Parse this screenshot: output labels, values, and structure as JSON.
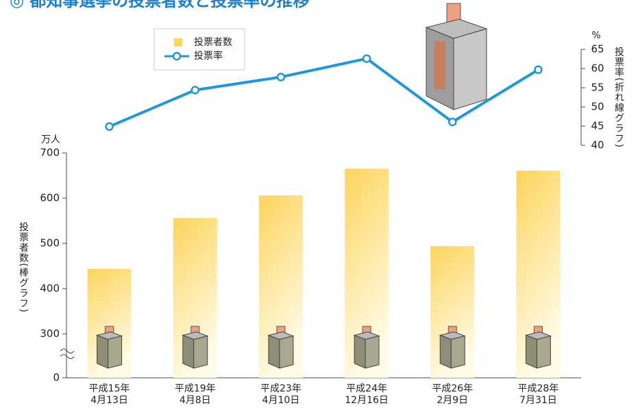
{
  "chart_data": {
    "type": "bar_line",
    "title": "◎ 都知事選挙の投票者数と投票率の推移",
    "categories": [
      [
        "平成15年",
        "4月13日"
      ],
      [
        "平成19年",
        "4月8日"
      ],
      [
        "平成23年",
        "4月10日"
      ],
      [
        "平成24年",
        "12月16日"
      ],
      [
        "平成26年",
        "2月9日"
      ],
      [
        "平成28年",
        "7月31日"
      ]
    ],
    "y_unit": "万人",
    "y_label": "投票者数(棒グラフ)",
    "y2_unit": "%",
    "y2_label": "投票率(折れ線グラフ)",
    "ylim": [
      0,
      700
    ],
    "yticks": [
      0,
      300,
      400,
      500,
      600,
      700
    ],
    "y_axis_break": [
      0,
      300
    ],
    "y2lim": [
      40,
      65
    ],
    "y2ticks": [
      40,
      45,
      50,
      55,
      60,
      65
    ],
    "series": [
      {
        "name": "投票者数",
        "color": "#fdd45c",
        "values": [
          444,
          556,
          606,
          665,
          494,
          661
        ]
      },
      {
        "name": "投票率",
        "color": "#1d98d8",
        "axis": "y2",
        "values": [
          44.9,
          54.4,
          57.8,
          62.6,
          46.1,
          59.7
        ]
      }
    ],
    "legend": "top-left"
  }
}
